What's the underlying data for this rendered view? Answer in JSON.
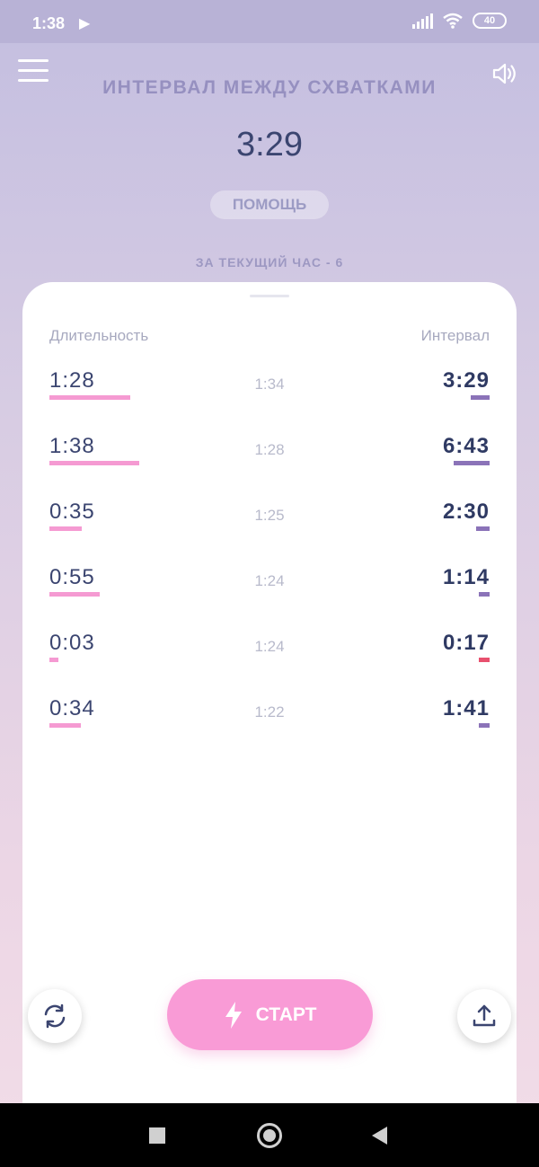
{
  "status_bar": {
    "time": "1:38",
    "battery": "40"
  },
  "header": {
    "title": "ИНТЕРВАЛ МЕЖДУ СХВАТКАМИ",
    "current_interval": "3:29",
    "help_label": "ПОМОЩЬ",
    "hour_count": "ЗА ТЕКУЩИЙ ЧАС - 6"
  },
  "table": {
    "col_duration": "Длительность",
    "col_interval": "Интервал",
    "rows": [
      {
        "duration": "1:28",
        "time": "1:34",
        "interval": "3:29",
        "duration_sec": 88,
        "interval_sec": 209,
        "interval_color": "#8b73b8"
      },
      {
        "duration": "1:38",
        "time": "1:28",
        "interval": "6:43",
        "duration_sec": 98,
        "interval_sec": 403,
        "interval_color": "#8b73b8"
      },
      {
        "duration": "0:35",
        "time": "1:25",
        "interval": "2:30",
        "duration_sec": 35,
        "interval_sec": 150,
        "interval_color": "#8b73b8"
      },
      {
        "duration": "0:55",
        "time": "1:24",
        "interval": "1:14",
        "duration_sec": 55,
        "interval_sec": 74,
        "interval_color": "#8b73b8"
      },
      {
        "duration": "0:03",
        "time": "1:24",
        "interval": "0:17",
        "duration_sec": 3,
        "interval_sec": 17,
        "interval_color": "#e8506e"
      },
      {
        "duration": "0:34",
        "time": "1:22",
        "interval": "1:41",
        "duration_sec": 34,
        "interval_sec": 101,
        "interval_color": "#8b73b8"
      }
    ]
  },
  "controls": {
    "start_label": "СТАРТ",
    "refresh_icon": "refresh-icon",
    "upload_icon": "upload-icon"
  },
  "colors": {
    "duration_bar": "#f59ad2",
    "interval_bar": "#8b73b8",
    "start_button": "#f99bd6"
  }
}
